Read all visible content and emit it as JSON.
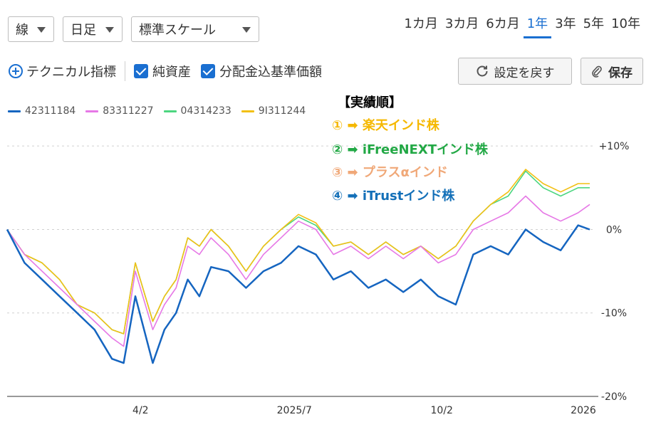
{
  "controls": {
    "chart_type": "線",
    "period": "日足",
    "scale": "標準スケール",
    "ranges": [
      "1カ月",
      "3カ月",
      "6カ月",
      "1年",
      "3年",
      "5年",
      "10年"
    ],
    "active_range": "1年",
    "technical_label": "テクニカル指標",
    "checkbox_net_assets": "純資産",
    "checkbox_dividend_nav": "分配金込基準価額",
    "reset_label": "設定を戻す",
    "save_label": "保存"
  },
  "annotation": {
    "title": "【実績順】",
    "items": [
      {
        "text": "① ➡ 楽天インド株",
        "color": "#f5b800"
      },
      {
        "text": "② ➡ iFreeNEXTインド株",
        "color": "#22a845"
      },
      {
        "text": "③ ➡ プラスαインド",
        "color": "#f0a878"
      },
      {
        "text": "④ ➡ iTrustインド株",
        "color": "#1470b8"
      }
    ]
  },
  "chart_data": {
    "type": "line",
    "title": "",
    "xlabel": "",
    "ylabel": "",
    "y_unit": "%",
    "ylim": [
      -20,
      13
    ],
    "yticks": [
      {
        "value": 10,
        "label": "+10%"
      },
      {
        "value": 0,
        "label": "0%"
      },
      {
        "value": -10,
        "label": "-10%"
      },
      {
        "value": -20,
        "label": "-20%"
      }
    ],
    "xlim": [
      0,
      1
    ],
    "xticks": [
      {
        "value": 0.229,
        "label": "4/2"
      },
      {
        "value": 0.493,
        "label": "2025/7"
      },
      {
        "value": 0.746,
        "label": "10/2"
      },
      {
        "value": 0.989,
        "label": "2026"
      }
    ],
    "grid": true,
    "legend": "top-left",
    "x": [
      0.0,
      0.03,
      0.06,
      0.09,
      0.12,
      0.15,
      0.18,
      0.2,
      0.22,
      0.25,
      0.27,
      0.29,
      0.31,
      0.33,
      0.35,
      0.38,
      0.41,
      0.44,
      0.47,
      0.5,
      0.53,
      0.56,
      0.59,
      0.62,
      0.65,
      0.68,
      0.71,
      0.74,
      0.77,
      0.8,
      0.83,
      0.86,
      0.89,
      0.92,
      0.95,
      0.98,
      1.0
    ],
    "series": [
      {
        "name": "42311184",
        "color": "#1565c0",
        "values": [
          0,
          -4,
          -6,
          -8,
          -10,
          -12,
          -15.5,
          -16,
          -8,
          -16,
          -12,
          -10,
          -6,
          -8,
          -4.5,
          -5,
          -7,
          -5,
          -4,
          -2,
          -3,
          -6,
          -5,
          -7,
          -6,
          -7.5,
          -6,
          -8,
          -9,
          -3,
          -2,
          -3,
          0,
          -1.5,
          -2.5,
          0.5,
          0
        ]
      },
      {
        "name": "83311227",
        "color": "#e678e6",
        "values": [
          0,
          -3,
          -5,
          -7,
          -9,
          -11,
          -13,
          -14,
          -5,
          -12,
          -9,
          -7,
          -2,
          -3,
          -1,
          -3,
          -6,
          -3,
          -1,
          1,
          0,
          -3,
          -2,
          -3.5,
          -2,
          -3.5,
          -2,
          -4,
          -3,
          0,
          1,
          2,
          4,
          2,
          1,
          2,
          3
        ]
      },
      {
        "name": "04314233",
        "color": "#4cd680",
        "values": [
          0,
          -3,
          -4,
          -6,
          -9,
          -10,
          -12,
          -12.5,
          -4,
          -11,
          -8,
          -6,
          -1,
          -2,
          0,
          -2,
          -5,
          -2,
          0,
          1.5,
          0.5,
          -2,
          -1.5,
          -3,
          -1.5,
          -3,
          -2,
          -3.5,
          -2,
          1,
          3,
          4,
          7,
          5,
          4,
          5,
          5
        ]
      },
      {
        "name": "9I311244",
        "color": "#f2c014",
        "values": [
          0,
          -3,
          -4,
          -6,
          -9,
          -10,
          -12,
          -12.5,
          -4,
          -11,
          -8,
          -6,
          -1,
          -2,
          0,
          -2,
          -5,
          -2,
          0,
          1.8,
          0.8,
          -2,
          -1.5,
          -3,
          -1.5,
          -3,
          -2,
          -3.5,
          -2,
          1,
          3,
          4.5,
          7.2,
          5.5,
          4.5,
          5.5,
          5.5
        ]
      }
    ]
  }
}
